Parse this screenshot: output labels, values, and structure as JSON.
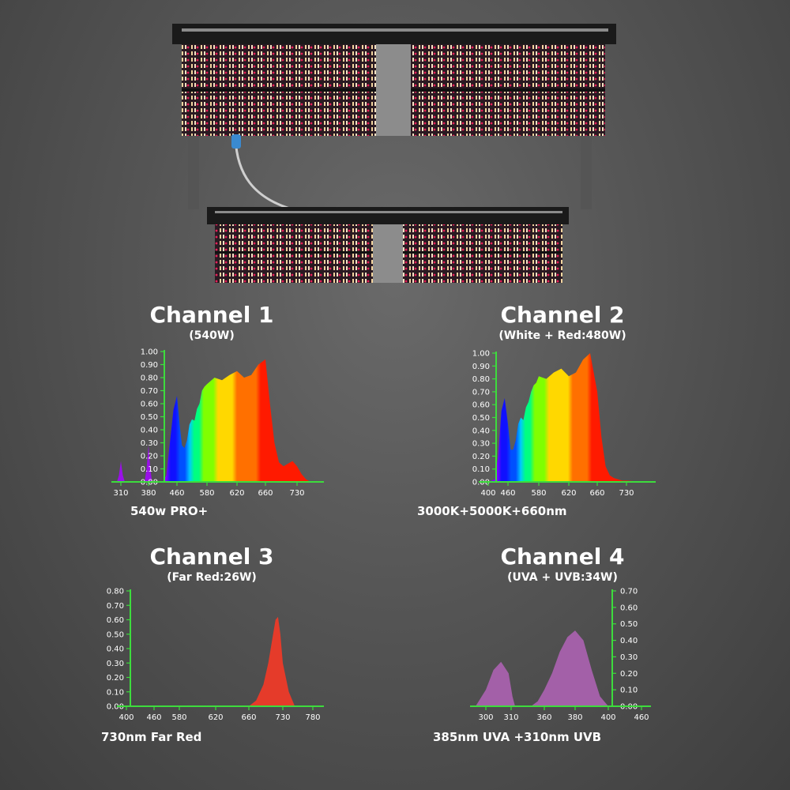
{
  "product_image": {
    "description": "LED grow light fixture with two light bars"
  },
  "channels": [
    {
      "title": "Channel 1",
      "subtitle": "(540W)",
      "caption": "540w PRO+"
    },
    {
      "title": "Channel 2",
      "subtitle": "(White + Red:480W)",
      "caption": "3000K+5000K+660nm"
    },
    {
      "title": "Channel 3",
      "subtitle": "(Far Red:26W)",
      "caption": "730nm Far Red"
    },
    {
      "title": "Channel 4",
      "subtitle": "(UVA + UVB:34W)",
      "caption": "385nm UVA +310nm UVB"
    }
  ],
  "chart_data": [
    {
      "type": "area",
      "title": "Channel 1",
      "subtitle": "(540W)",
      "x_ticks": [
        "310",
        "380",
        "460",
        "580",
        "620",
        "660",
        "730"
      ],
      "y_ticks": [
        "0.00",
        "0.10",
        "0.20",
        "0.30",
        "0.40",
        "0.50",
        "0.60",
        "0.70",
        "0.80",
        "0.90",
        "1.00"
      ],
      "ylim": [
        0,
        1.0
      ],
      "series": [
        {
          "x": [
            300,
            305,
            310,
            315,
            320
          ],
          "y": [
            0,
            0.05,
            0.16,
            0.05,
            0
          ]
        },
        {
          "x": [
            370,
            375,
            380,
            385,
            390
          ],
          "y": [
            0,
            0.1,
            0.28,
            0.1,
            0
          ]
        },
        {
          "x": [
            420,
            430,
            440,
            450,
            460,
            470,
            480,
            490,
            500,
            510,
            520,
            530,
            540,
            550,
            560,
            570,
            580,
            590,
            600,
            610,
            620,
            630,
            640,
            650,
            660,
            670,
            680,
            690,
            700,
            710,
            720,
            730,
            740,
            750,
            760
          ],
          "y": [
            0,
            0.05,
            0.3,
            0.55,
            0.66,
            0.45,
            0.28,
            0.26,
            0.32,
            0.44,
            0.48,
            0.47,
            0.56,
            0.6,
            0.7,
            0.73,
            0.75,
            0.8,
            0.78,
            0.82,
            0.85,
            0.8,
            0.82,
            0.9,
            0.94,
            0.6,
            0.3,
            0.15,
            0.12,
            0.14,
            0.16,
            0.12,
            0.06,
            0.02,
            0
          ]
        }
      ]
    },
    {
      "type": "area",
      "title": "Channel 2",
      "subtitle": "(White + Red:480W)",
      "x_ticks": [
        "400",
        "460",
        "580",
        "620",
        "660",
        "730"
      ],
      "y_ticks": [
        "0.00",
        "0.10",
        "0.20",
        "0.30",
        "0.40",
        "0.50",
        "0.60",
        "0.70",
        "0.80",
        "0.90",
        "1.00"
      ],
      "ylim": [
        0,
        1.0
      ],
      "series": [
        {
          "x": [
            400,
            420,
            430,
            440,
            450,
            460,
            470,
            480,
            490,
            500,
            510,
            520,
            530,
            540,
            550,
            560,
            570,
            580,
            590,
            600,
            610,
            620,
            630,
            640,
            650,
            660,
            670,
            680,
            690,
            700,
            710,
            720,
            730,
            740,
            750,
            760
          ],
          "y": [
            0,
            0.02,
            0.2,
            0.55,
            0.65,
            0.45,
            0.25,
            0.25,
            0.32,
            0.45,
            0.5,
            0.48,
            0.58,
            0.62,
            0.7,
            0.75,
            0.77,
            0.82,
            0.8,
            0.85,
            0.88,
            0.82,
            0.85,
            0.95,
            1.0,
            0.7,
            0.35,
            0.12,
            0.05,
            0.03,
            0.02,
            0.01,
            0.01,
            0.005,
            0.002,
            0
          ]
        }
      ]
    },
    {
      "type": "area",
      "title": "Channel 3",
      "subtitle": "(Far Red:26W)",
      "x_ticks": [
        "400",
        "460",
        "580",
        "620",
        "660",
        "730",
        "780"
      ],
      "y_ticks": [
        "0.00",
        "0.10",
        "0.20",
        "0.30",
        "0.40",
        "0.50",
        "0.60",
        "0.70",
        "0.80"
      ],
      "ylim": [
        0,
        0.8
      ],
      "series": [
        {
          "x": [
            660,
            675,
            690,
            700,
            710,
            715,
            720,
            725,
            730,
            740,
            750
          ],
          "y": [
            0,
            0.04,
            0.15,
            0.3,
            0.5,
            0.6,
            0.62,
            0.5,
            0.3,
            0.1,
            0
          ]
        }
      ]
    },
    {
      "type": "area",
      "title": "Channel 4",
      "subtitle": "(UVA + UVB:34W)",
      "x_ticks": [
        "300",
        "310",
        "360",
        "380",
        "400",
        "460"
      ],
      "y_ticks": [
        "0.00",
        "0.10",
        "0.20",
        "0.30",
        "0.40",
        "0.50",
        "0.60",
        "0.70"
      ],
      "ylim": [
        0,
        0.7
      ],
      "series": [
        {
          "x": [
            296,
            300,
            303,
            306,
            309,
            312,
            316
          ],
          "y": [
            0,
            0.1,
            0.22,
            0.27,
            0.2,
            0.06,
            0
          ]
        },
        {
          "x": [
            340,
            350,
            360,
            365,
            370,
            375,
            380,
            385,
            390,
            395,
            400
          ],
          "y": [
            0,
            0.03,
            0.1,
            0.2,
            0.33,
            0.42,
            0.46,
            0.4,
            0.22,
            0.06,
            0
          ]
        }
      ]
    }
  ]
}
